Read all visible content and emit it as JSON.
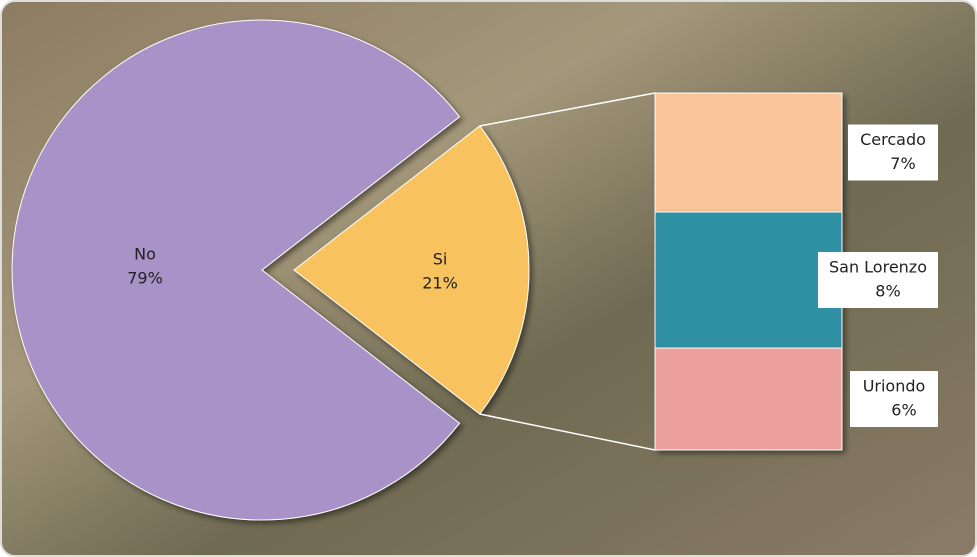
{
  "chart_data": {
    "type": "pie",
    "categories": [
      "No",
      "Si"
    ],
    "values": [
      79,
      21
    ],
    "value_labels": [
      "79%",
      "21%"
    ],
    "colors": [
      "#a892c8",
      "#f8c25e"
    ],
    "breakdown": {
      "categories": [
        "Cercado",
        "San Lorenzo",
        "Uriondo"
      ],
      "values": [
        7,
        8,
        6
      ],
      "value_labels": [
        "7%",
        "8%",
        "6%"
      ],
      "colors": [
        "#f9c49a",
        "#2f90a2",
        "#eca09d"
      ]
    }
  }
}
